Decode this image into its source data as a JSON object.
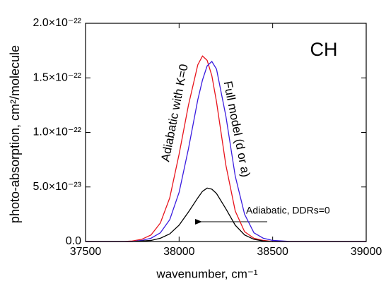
{
  "chart_data": {
    "type": "line",
    "title": "CH",
    "xlabel": "wavenumber, cm⁻¹",
    "ylabel": "photo-absorption, cm²/molecule",
    "x": [
      37500,
      37600,
      37700,
      37750,
      37800,
      37850,
      37900,
      37950,
      38000,
      38050,
      38100,
      38125,
      38150,
      38175,
      38200,
      38250,
      38300,
      38350,
      38400,
      38450,
      38500,
      38600,
      38700,
      38800,
      38900,
      39000
    ],
    "series": [
      {
        "name": "Adiabatic with K=0",
        "color": "#e8141c",
        "values": [
          0,
          0,
          0,
          5e-25,
          2e-24,
          6e-24,
          1.7e-23,
          4e-23,
          8e-23,
          1.25e-22,
          1.62e-22,
          1.7e-22,
          1.66e-22,
          1.52e-22,
          1.28e-22,
          7e-23,
          2.8e-23,
          9e-24,
          3e-24,
          1e-24,
          0,
          0,
          0,
          0,
          0,
          0
        ]
      },
      {
        "name": "Full model (d or a)",
        "color": "#3a1ce0",
        "values": [
          0,
          0,
          0,
          0,
          1e-24,
          3e-24,
          8e-24,
          2e-23,
          4.5e-23,
          8.5e-23,
          1.3e-22,
          1.48e-22,
          1.61e-22,
          1.65e-22,
          1.58e-22,
          1.15e-22,
          6e-23,
          2.5e-23,
          8e-24,
          3e-24,
          1e-24,
          0,
          0,
          0,
          0,
          0
        ]
      },
      {
        "name": "Adiabatic, DDRs=0",
        "color": "#000000",
        "values": [
          0,
          0,
          0,
          0,
          5e-25,
          1e-24,
          3e-24,
          7e-24,
          1.5e-23,
          2.7e-23,
          4e-23,
          4.6e-23,
          4.9e-23,
          4.8e-23,
          4.4e-23,
          3e-23,
          1.5e-23,
          6e-24,
          2e-24,
          5e-25,
          0,
          0,
          0,
          0,
          0,
          0
        ]
      }
    ],
    "xlim": [
      37500,
      39000
    ],
    "xticks": [
      37500,
      38000,
      38500,
      39000
    ],
    "ylim": [
      0,
      2e-22
    ],
    "yticks": [
      {
        "value": 0,
        "label": "0.0"
      },
      {
        "value": 5e-23,
        "label": "5.0×10⁻²³"
      },
      {
        "value": 1e-22,
        "label": "1.0×10⁻²²"
      },
      {
        "value": 1.5e-22,
        "label": "1.5×10⁻²²"
      },
      {
        "value": 2e-22,
        "label": "2.0×10⁻²²"
      }
    ],
    "grid": false
  }
}
